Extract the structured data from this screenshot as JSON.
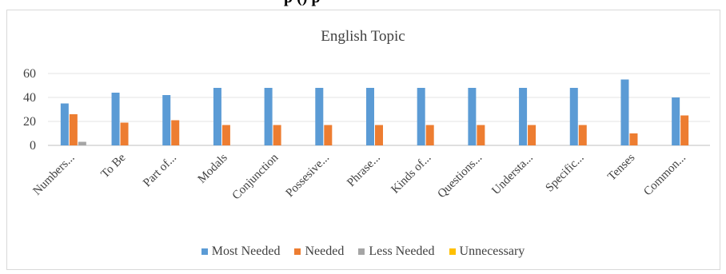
{
  "page_header_fragment": "p   ()   p",
  "chart_data": {
    "type": "bar",
    "title": "English  Topic",
    "xlabel": "",
    "ylabel": "",
    "ylim": [
      0,
      60
    ],
    "yticks": [
      "0",
      "20",
      "40",
      "60"
    ],
    "grid": true,
    "legend_position": "bottom",
    "categories": [
      "Numbers...",
      "To Be",
      "Part of...",
      "Modals",
      "Conjunction",
      "Possesive...",
      "Phrase...",
      "Kinds of...",
      "Questions...",
      "Understa...",
      "Specific...",
      "Tenses",
      "Common..."
    ],
    "series": [
      {
        "name": "Most Needed",
        "color": "#5b9bd5",
        "values": [
          35,
          44,
          42,
          48,
          48,
          48,
          48,
          48,
          48,
          48,
          48,
          55,
          40
        ]
      },
      {
        "name": "Needed",
        "color": "#ed7d31",
        "values": [
          26,
          19,
          21,
          17,
          17,
          17,
          17,
          17,
          17,
          17,
          17,
          10,
          25
        ]
      },
      {
        "name": "Less Needed",
        "color": "#a5a5a5",
        "values": [
          3,
          0,
          0,
          0,
          0,
          0,
          0,
          0,
          0,
          0,
          0,
          0,
          0
        ]
      },
      {
        "name": "Unnecessary",
        "color": "#ffc000",
        "values": [
          0,
          0,
          0,
          0,
          0,
          0,
          0,
          0,
          0,
          0,
          0,
          0,
          0
        ]
      }
    ]
  }
}
